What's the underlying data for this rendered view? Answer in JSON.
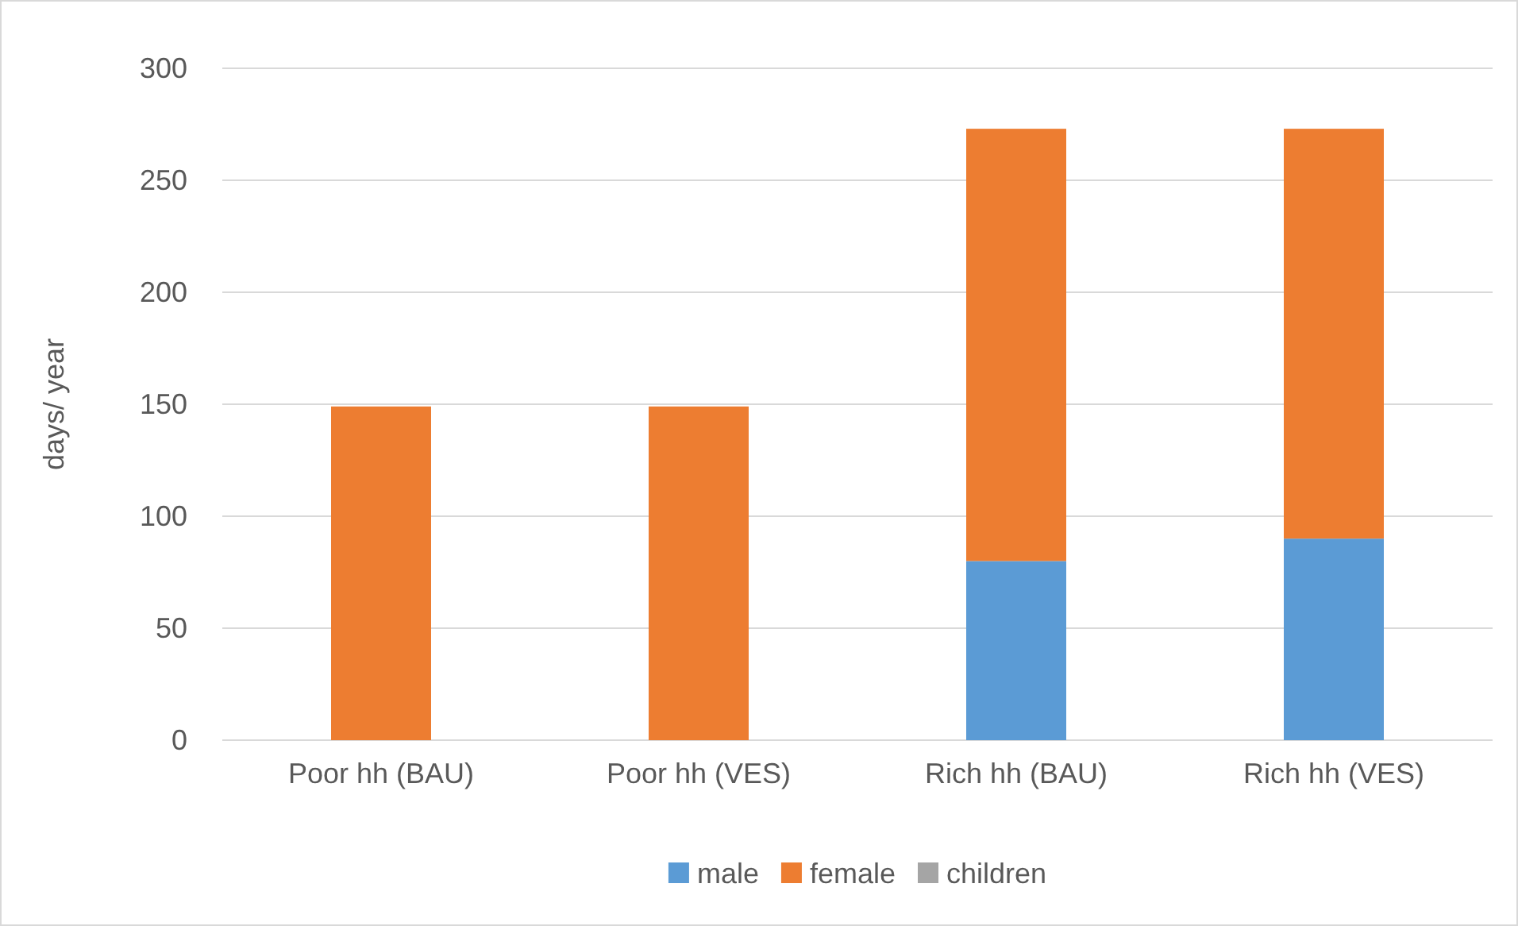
{
  "chart_data": {
    "type": "bar",
    "stacked": true,
    "ylabel": "days/ year",
    "categories": [
      "Poor hh (BAU)",
      "Poor hh (VES)",
      "Rich hh (BAU)",
      "Rich hh (VES)"
    ],
    "series": [
      {
        "name": "male",
        "color": "#5b9bd5",
        "values": [
          0,
          0,
          80,
          90
        ]
      },
      {
        "name": "female",
        "color": "#ed7d31",
        "values": [
          149,
          149,
          193,
          183
        ]
      },
      {
        "name": "children",
        "color": "#a5a5a5",
        "values": [
          0,
          0,
          0,
          0
        ]
      }
    ],
    "ylim": [
      0,
      300
    ],
    "yticks": [
      0,
      50,
      100,
      150,
      200,
      250,
      300
    ],
    "grid": "y",
    "legend": "bottom"
  }
}
